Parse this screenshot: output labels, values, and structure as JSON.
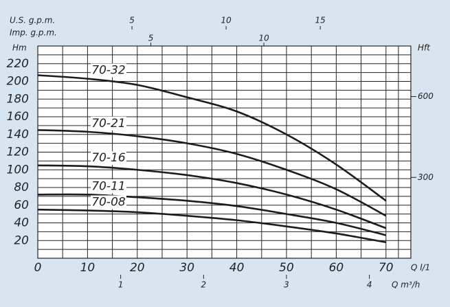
{
  "chart_data": {
    "type": "line",
    "y_label": "Hm",
    "y2_label": "Hft",
    "x_label": "Q l/1",
    "x2": {
      "label": "Q m³/h",
      "lim": [
        0,
        4.5
      ],
      "ticks": [
        1,
        2,
        3,
        4
      ]
    },
    "x3": {
      "label": "U.S. g.p.m.",
      "lim": [
        0,
        19.81
      ],
      "ticks": [
        5,
        10,
        15
      ]
    },
    "x4": {
      "label": "Imp. g.p.m.",
      "lim": [
        0,
        16.5
      ],
      "ticks": [
        5,
        10
      ]
    },
    "xlim": [
      0,
      75
    ],
    "xticks": [
      0,
      10,
      20,
      30,
      40,
      50,
      60,
      70
    ],
    "ylim": [
      0,
      240
    ],
    "yticks": [
      20,
      40,
      60,
      80,
      100,
      120,
      140,
      160,
      180,
      200,
      220
    ],
    "y2lim": [
      0,
      787.4
    ],
    "y2ticks": [
      300,
      600
    ],
    "grid": true,
    "color": "#1c1c1c",
    "x": [
      0,
      10,
      20,
      30,
      40,
      50,
      60,
      70
    ],
    "series": [
      {
        "name": "70-32",
        "values": [
          207,
          203,
          196,
          182,
          166,
          140,
          106,
          65
        ]
      },
      {
        "name": "70-21",
        "values": [
          145,
          143,
          138,
          130,
          118,
          100,
          78,
          48
        ]
      },
      {
        "name": "70-16",
        "values": [
          105,
          104,
          100,
          94,
          85,
          72,
          55,
          34
        ]
      },
      {
        "name": "70-11",
        "values": [
          72,
          72,
          69,
          65,
          59,
          50,
          40,
          26
        ]
      },
      {
        "name": "70-08",
        "values": [
          55,
          54,
          52,
          48,
          43,
          36,
          28,
          18
        ]
      }
    ]
  }
}
